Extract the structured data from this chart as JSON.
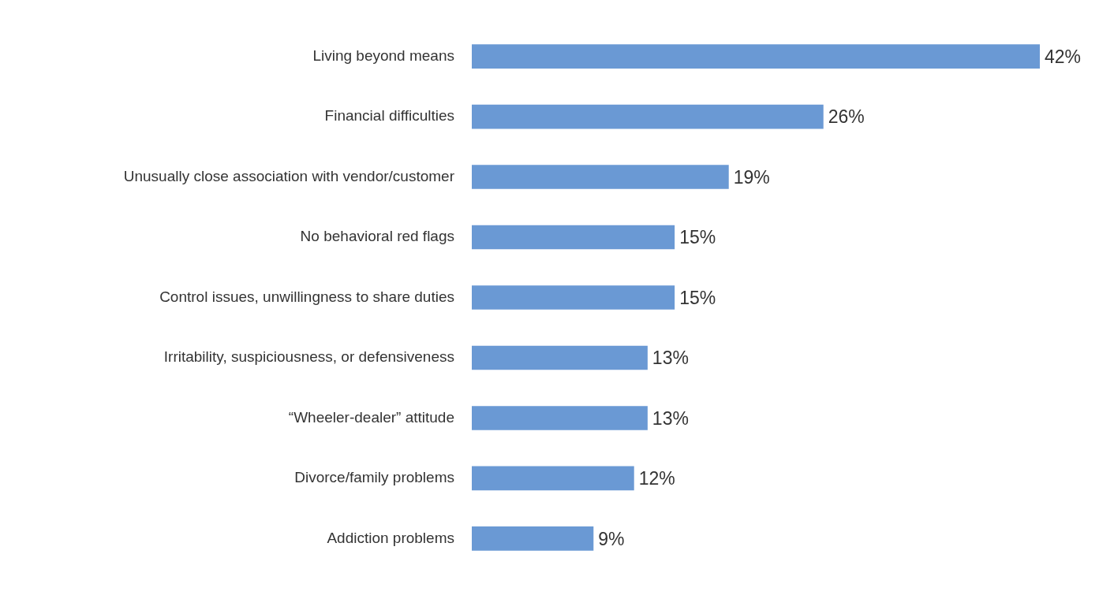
{
  "chart_data": {
    "type": "bar",
    "orientation": "horizontal",
    "categories": [
      "Living beyond means",
      "Financial difficulties",
      "Unusually close association with vendor/customer",
      "No behavioral red flags",
      "Control issues, unwillingness to share duties",
      "Irritability, suspiciousness, or defensiveness",
      "“Wheeler-dealer” attitude",
      "Divorce/family problems",
      "Addiction problems"
    ],
    "values": [
      42,
      26,
      19,
      15,
      15,
      13,
      13,
      12,
      9
    ],
    "value_labels": [
      "42%",
      "26%",
      "19%",
      "15%",
      "15%",
      "13%",
      "13%",
      "12%",
      "9%"
    ],
    "color": "#6a99d4",
    "legend": false
  }
}
